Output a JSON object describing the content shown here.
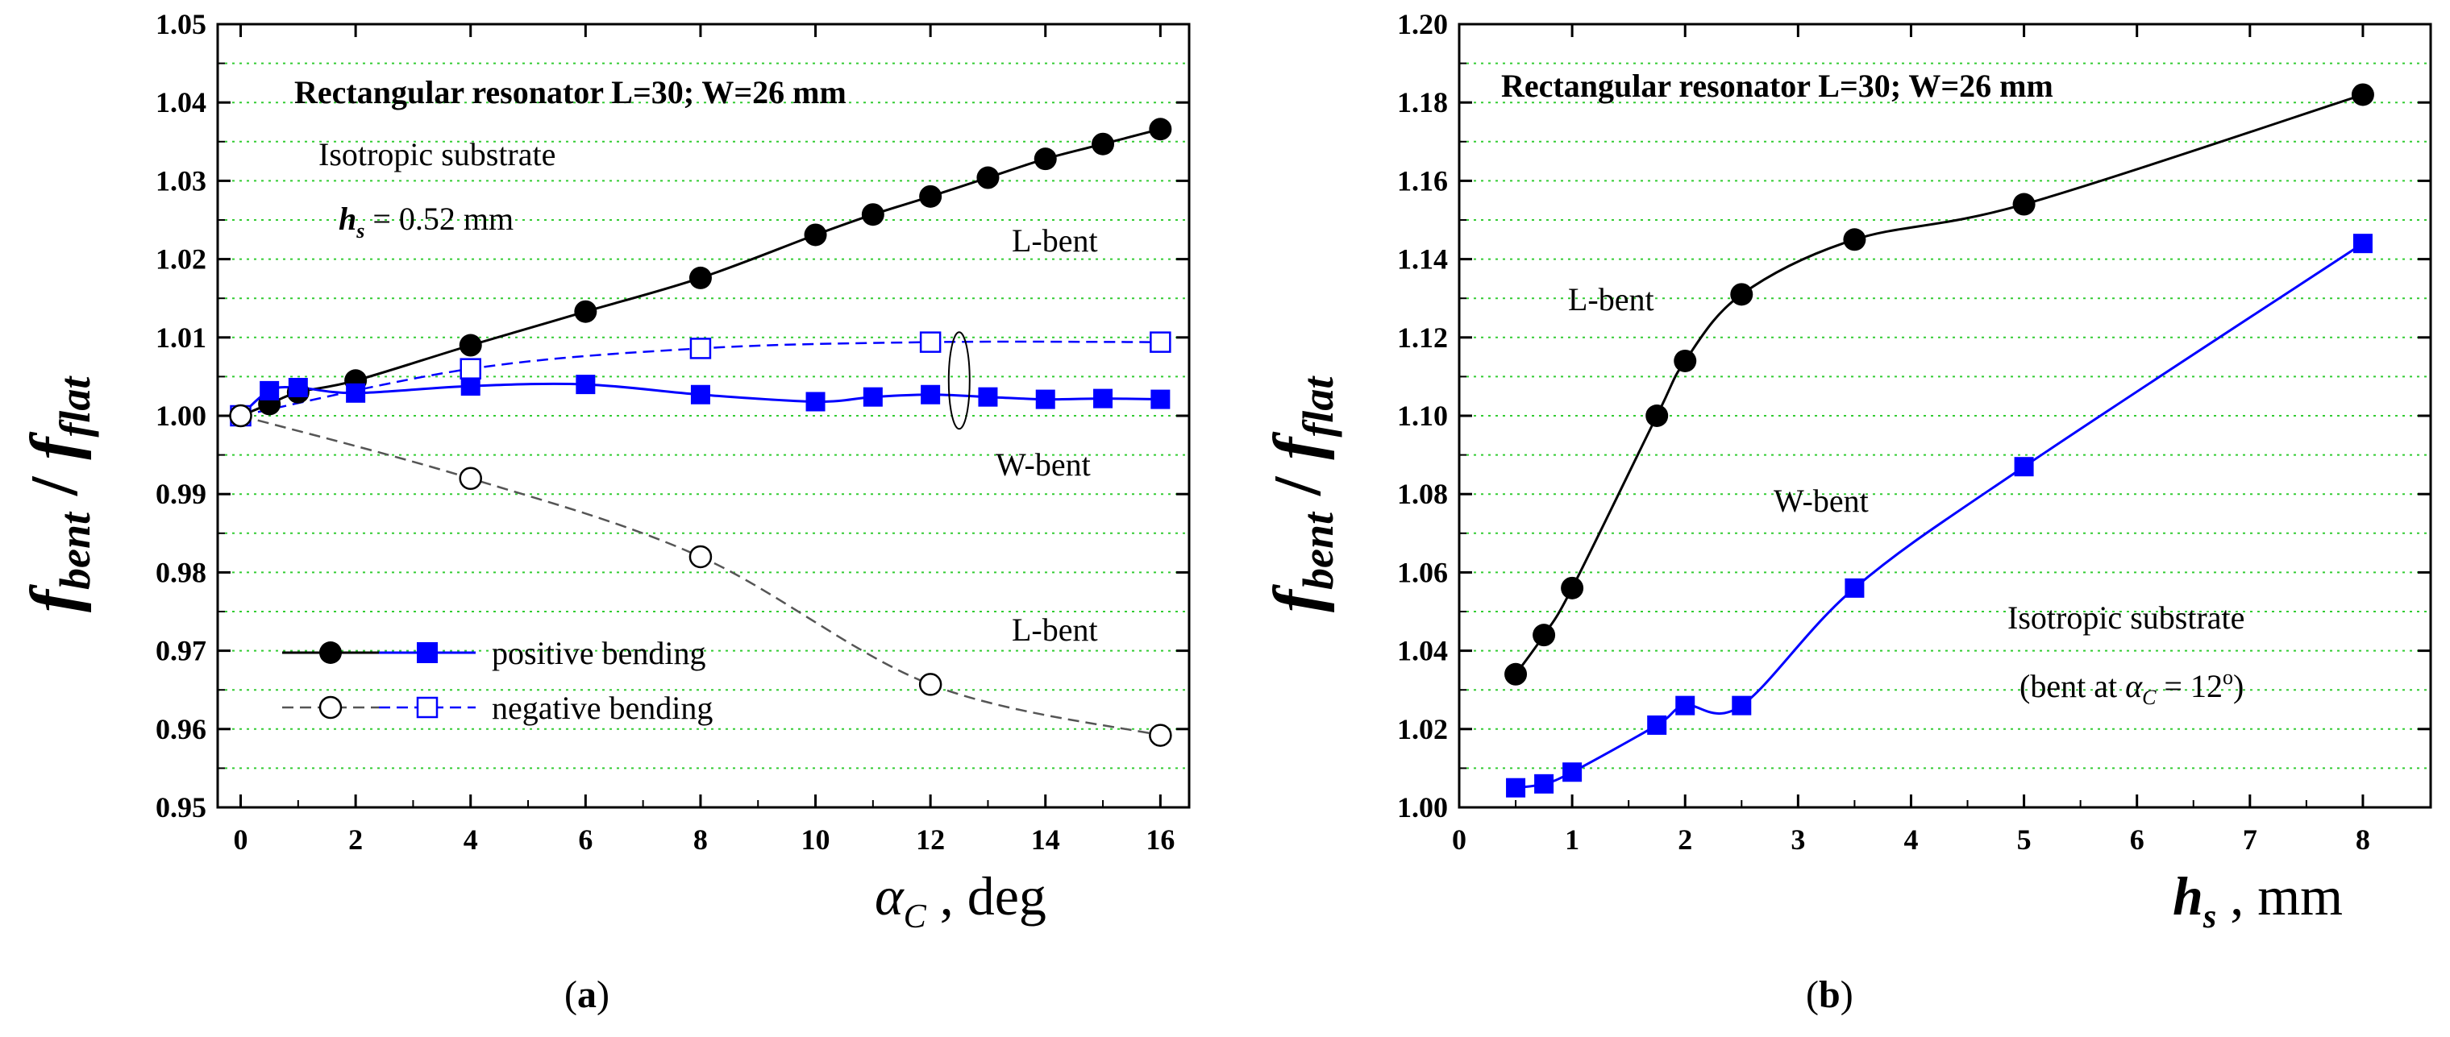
{
  "chart_data": [
    {
      "type": "line",
      "panel_label": "(a)",
      "title": "Rectangular resonator L=30; W=26 mm",
      "ylabel_main": "f",
      "ylabel_sub1": "bent",
      "ylabel_sep": " / ",
      "ylabel_main2": "f",
      "ylabel_sub2": "flat",
      "xlabel_symbol": "α",
      "xlabel_sub": "C",
      "xlabel_unit": " , deg",
      "xlim": [
        0,
        16
      ],
      "ylim": [
        0.95,
        1.05
      ],
      "xticks": [
        "0",
        "2",
        "4",
        "6",
        "8",
        "10",
        "12",
        "14",
        "16"
      ],
      "yticks": [
        "0.95",
        "0.96",
        "0.97",
        "0.98",
        "0.99",
        "1.00",
        "1.01",
        "1.02",
        "1.03",
        "1.04",
        "1.05"
      ],
      "grid": true,
      "annotations": {
        "substrate_line1": "Isotropic substrate",
        "substrate_h": "h",
        "substrate_s": "s",
        "substrate_value": " = 0.52 mm",
        "lbent_upper": "L-bent",
        "wbent": "W-bent",
        "lbent_lower": "L-bent"
      },
      "legend": {
        "position": "lower-left",
        "positive": "positive bending",
        "negative": "negative bending"
      },
      "series": [
        {
          "key": "L-bent positive",
          "color": "#000000",
          "marker": "filled-circle",
          "style": "solid",
          "x": [
            0,
            0.5,
            1,
            2,
            4,
            6,
            8,
            10,
            11,
            12,
            13,
            14,
            15,
            16
          ],
          "y": [
            1.0,
            1.0015,
            1.003,
            1.0045,
            1.009,
            1.0133,
            1.0176,
            1.0231,
            1.0257,
            1.028,
            1.0304,
            1.0328,
            1.0347,
            1.0366
          ]
        },
        {
          "key": "W-bent positive",
          "color": "#0000ff",
          "marker": "filled-square",
          "style": "solid",
          "x": [
            0,
            0.5,
            1,
            2,
            4,
            6,
            8,
            10,
            11,
            12,
            13,
            14,
            15,
            16
          ],
          "y": [
            1.0,
            1.0032,
            1.0036,
            1.0029,
            1.0038,
            1.004,
            1.0027,
            1.0018,
            1.0024,
            1.0027,
            1.0024,
            1.0021,
            1.0022,
            1.0021
          ]
        },
        {
          "key": "W-bent negative",
          "color": "#0000ff",
          "marker": "open-square",
          "style": "dashed",
          "x": [
            0,
            4,
            8,
            12,
            16
          ],
          "y": [
            1.0,
            1.006,
            1.0086,
            1.0094,
            1.0094
          ]
        },
        {
          "key": "L-bent negative",
          "color": "#000000",
          "marker": "open-circle",
          "style": "dashed",
          "x": [
            0,
            4,
            8,
            12,
            16
          ],
          "y": [
            1.0,
            0.992,
            0.982,
            0.9657,
            0.9592
          ]
        }
      ]
    },
    {
      "type": "line",
      "panel_label": "(b)",
      "title": "Rectangular resonator L=30; W=26 mm",
      "ylabel_main": "f",
      "ylabel_sub1": "bent",
      "ylabel_sep": " / ",
      "ylabel_main2": "f",
      "ylabel_sub2": "flat",
      "xlabel_symbol": "h",
      "xlabel_sub": "s",
      "xlabel_unit": " , mm",
      "xlim": [
        0,
        8.6
      ],
      "ylim": [
        1.0,
        1.2
      ],
      "xticks": [
        "0",
        "1",
        "2",
        "3",
        "4",
        "5",
        "6",
        "7",
        "8"
      ],
      "yticks": [
        "1.00",
        "1.02",
        "1.04",
        "1.06",
        "1.08",
        "1.10",
        "1.12",
        "1.14",
        "1.16",
        "1.18",
        "1.20"
      ],
      "grid": true,
      "annotations": {
        "lbent": "L-bent",
        "wbent": "W-bent",
        "substrate_line1": "Isotropic substrate",
        "substrate_line2_pre": "(bent at ",
        "substrate_alpha": "α",
        "substrate_sub": "C",
        "substrate_line2_post": " = 12",
        "substrate_deg": "o",
        "substrate_close": ")"
      },
      "series": [
        {
          "key": "L-bent",
          "color": "#000000",
          "marker": "filled-circle",
          "style": "solid",
          "x": [
            0.5,
            0.75,
            1,
            1.75,
            2,
            2.5,
            3.5,
            5,
            8
          ],
          "y": [
            1.034,
            1.044,
            1.056,
            1.1,
            1.114,
            1.131,
            1.145,
            1.154,
            1.182
          ]
        },
        {
          "key": "W-bent",
          "color": "#0000ff",
          "marker": "filled-square",
          "style": "solid",
          "x": [
            0.5,
            0.75,
            1,
            1.75,
            2,
            2.5,
            3.5,
            5,
            8
          ],
          "y": [
            1.005,
            1.006,
            1.009,
            1.021,
            1.026,
            1.026,
            1.056,
            1.087,
            1.144
          ]
        }
      ]
    }
  ]
}
